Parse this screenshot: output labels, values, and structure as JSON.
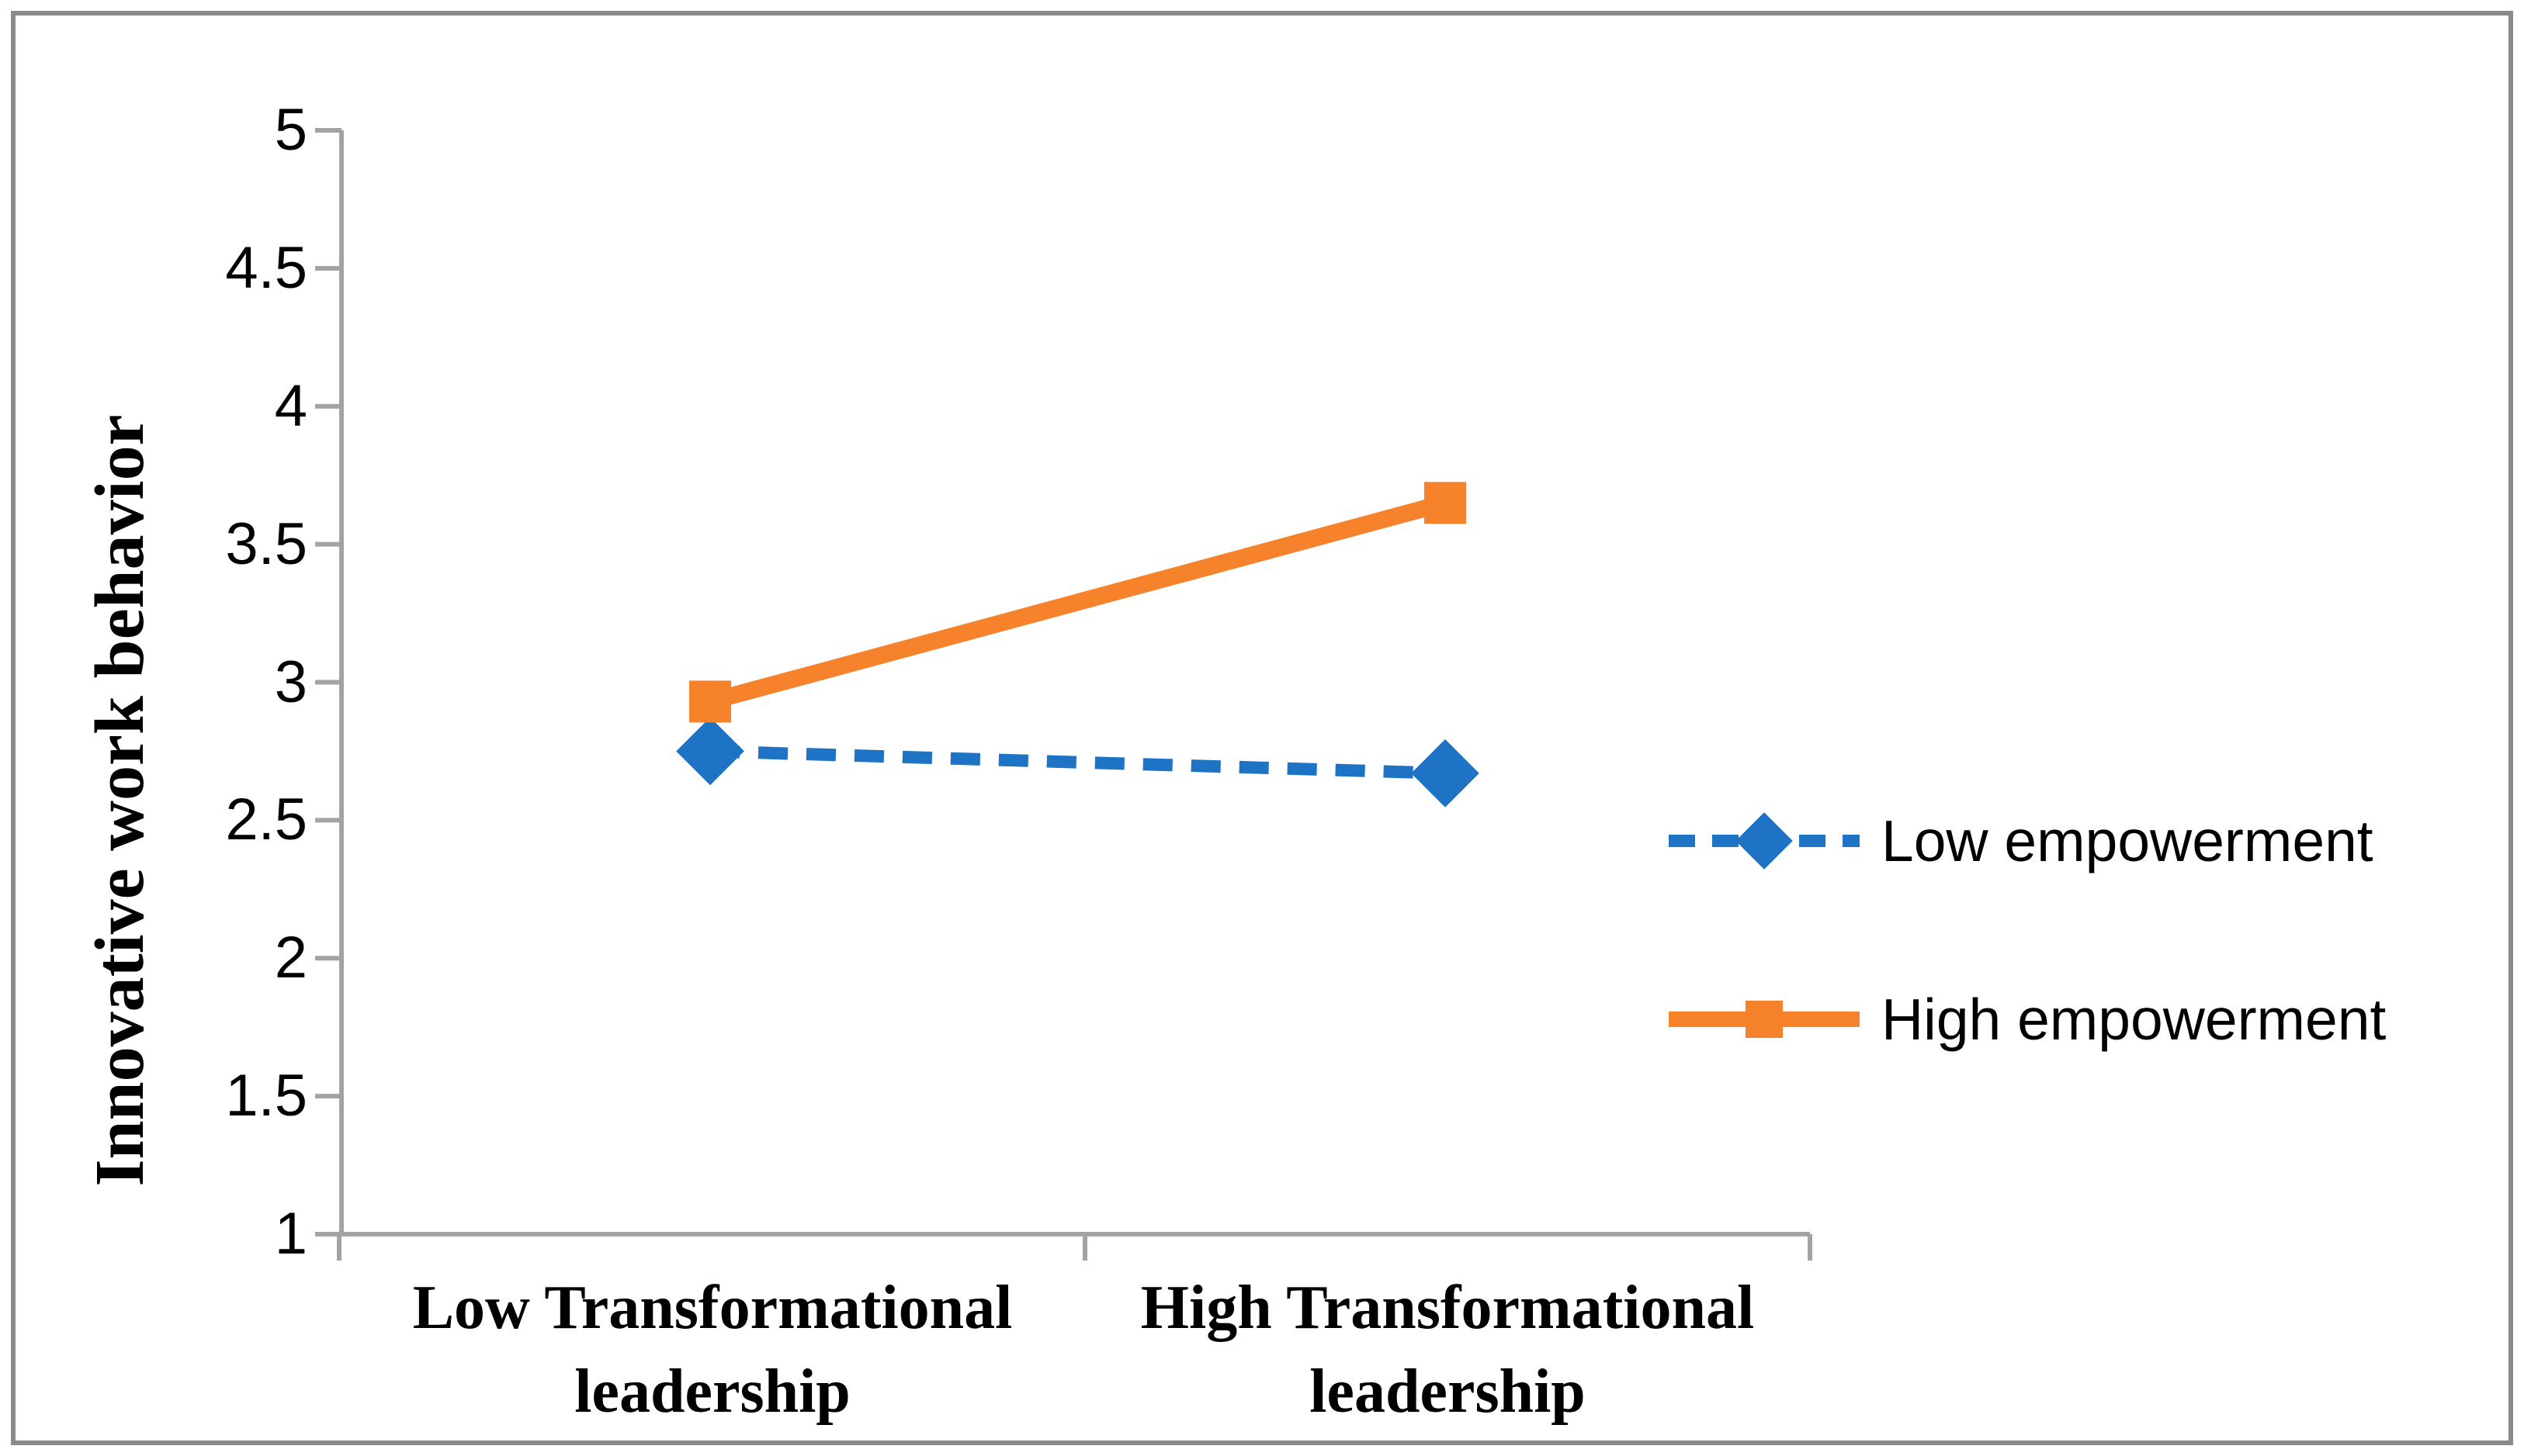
{
  "figure": {
    "border_color": "#8a8a8a",
    "background": "#ffffff"
  },
  "chart_data": {
    "type": "line",
    "categories": [
      "Low Transformational leadership",
      "High Transformational leadership"
    ],
    "series": [
      {
        "name": "Low empowerment",
        "values": [
          2.75,
          2.67
        ],
        "color": "#1e73c4",
        "line_style": "dashed",
        "marker": "diamond"
      },
      {
        "name": "High empowerment",
        "values": [
          2.93,
          3.65
        ],
        "color": "#f6832b",
        "line_style": "solid",
        "marker": "square"
      }
    ],
    "title": "",
    "xlabel": "",
    "ylabel": "Innovative work behavior",
    "ylim": [
      1,
      5
    ],
    "ytick_step": 0.5,
    "yticks": [
      "5",
      "4.5",
      "4",
      "3.5",
      "3",
      "2.5",
      "2",
      "1.5",
      "1"
    ],
    "grid": false,
    "legend_position": "center-right",
    "axis_color": "#a3a3a3"
  }
}
